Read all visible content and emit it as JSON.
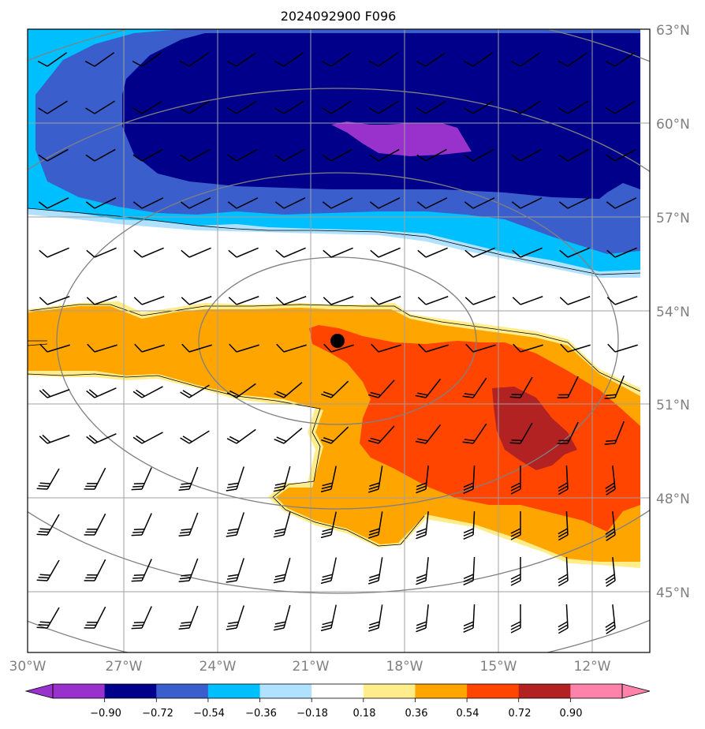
{
  "title": "2024092900 F096",
  "map": {
    "latitude_labels": [
      "63°N",
      "60°N",
      "57°N",
      "54°N",
      "51°N",
      "48°N",
      "45°N"
    ],
    "longitude_labels": [
      "30°W",
      "27°W",
      "24°W",
      "21°W",
      "18°W",
      "15°W",
      "12°W"
    ],
    "center_marker": {
      "lon": -20.1,
      "lat": 53.0
    }
  },
  "colorbar": {
    "tick_labels": [
      "−0.90",
      "−0.72",
      "−0.54",
      "−0.36",
      "−0.18",
      "0.18",
      "0.36",
      "0.54",
      "0.72",
      "0.90"
    ],
    "colors": [
      "#9932CC",
      "#00008B",
      "#3A5FCD",
      "#00BFFF",
      "#B0E2FF",
      "#FFFFFF",
      "#FFEC8B",
      "#FFA500",
      "#FF4500",
      "#B22222",
      "#FF82AB"
    ]
  },
  "colors": {
    "purple": "#9932CC",
    "navy": "#00008B",
    "royal_blue": "#3A5FCD",
    "deep_sky_blue": "#00BFFF",
    "light_blue": "#B0E2FF",
    "light_yellow": "#FFEC8B",
    "orange": "#FFA500",
    "orange_red": "#FF4500",
    "firebrick": "#B22222",
    "grid": "#A0A0A0",
    "range_circles": "#808080"
  }
}
